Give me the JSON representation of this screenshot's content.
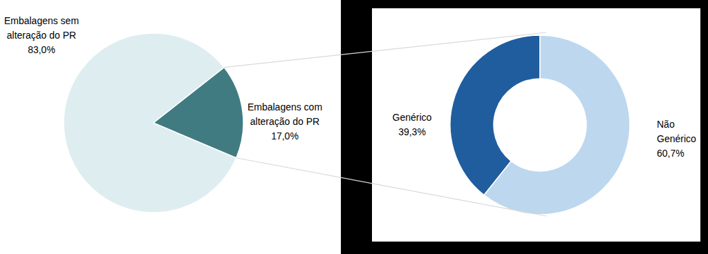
{
  "chart_data": [
    {
      "type": "pie",
      "categories": [
        "Embalagens sem alteração do PR",
        "Embalagens com alteração do PR"
      ],
      "values": [
        83.0,
        17.0
      ],
      "value_labels": [
        "83,0%",
        "17,0%"
      ],
      "colors": [
        "#deedf0",
        "#417b82"
      ],
      "data_labels": true
    },
    {
      "type": "donut",
      "categories": [
        "Genérico",
        "Não Genérico"
      ],
      "values": [
        39.3,
        60.7
      ],
      "value_labels": [
        "39,3%",
        "60,7%"
      ],
      "colors": [
        "#1f5d9e",
        "#bdd7ee"
      ],
      "data_labels": true
    }
  ]
}
